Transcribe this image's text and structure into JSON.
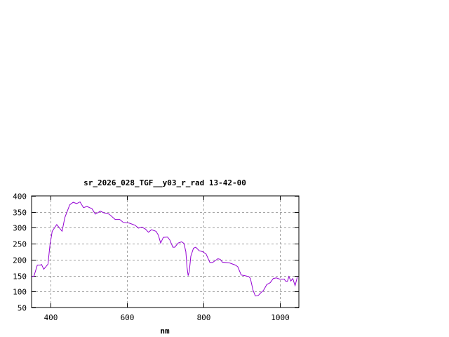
{
  "chart_data": {
    "type": "line",
    "title": "sr_2026_028_TGF__y03_r_rad 13-42-00",
    "xlabel": "nm",
    "ylabel": "",
    "xlim": [
      350,
      1050
    ],
    "ylim": [
      50,
      400
    ],
    "xticks": [
      400,
      600,
      800,
      1000
    ],
    "yticks": [
      50,
      100,
      150,
      200,
      250,
      300,
      350,
      400
    ],
    "grid": true,
    "legend": "none",
    "line_color": "#9400d3",
    "series": [
      {
        "x": [
          349,
          356,
          365,
          373,
          376,
          382,
          393,
          398,
          404,
          416,
          430,
          437,
          450,
          459,
          468,
          477,
          486,
          495,
          508,
          517,
          530,
          541,
          553,
          569,
          581,
          590,
          605,
          621,
          630,
          639,
          648,
          656,
          664,
          676,
          682,
          688,
          695,
          706,
          712,
          720,
          725,
          734,
          743,
          749,
          754,
          757,
          760,
          763,
          767,
          774,
          780,
          789,
          798,
          807,
          817,
          824,
          838,
          844,
          850,
          868,
          884,
          890,
          899,
          908,
          919,
          923,
          930,
          936,
          944,
          951,
          957,
          966,
          975,
          983,
          991,
          1000,
          1012,
          1015,
          1020,
          1024,
          1029,
          1034,
          1040,
          1046
        ],
        "y": [
          147,
          148,
          183,
          183,
          185,
          170,
          186,
          244,
          289,
          310,
          289,
          332,
          372,
          380,
          376,
          381,
          363,
          367,
          360,
          343,
          352,
          346,
          343,
          326,
          326,
          317,
          315,
          308,
          299,
          302,
          296,
          286,
          294,
          289,
          277,
          252,
          270,
          271,
          262,
          239,
          239,
          252,
          256,
          251,
          225,
          178,
          150,
          163,
          211,
          236,
          239,
          228,
          225,
          218,
          191,
          191,
          203,
          201,
          192,
          190,
          183,
          178,
          152,
          150,
          147,
          141,
          104,
          86,
          88,
          97,
          103,
          122,
          128,
          141,
          143,
          139,
          139,
          133,
          132,
          147,
          133,
          141,
          119,
          145
        ]
      }
    ]
  }
}
